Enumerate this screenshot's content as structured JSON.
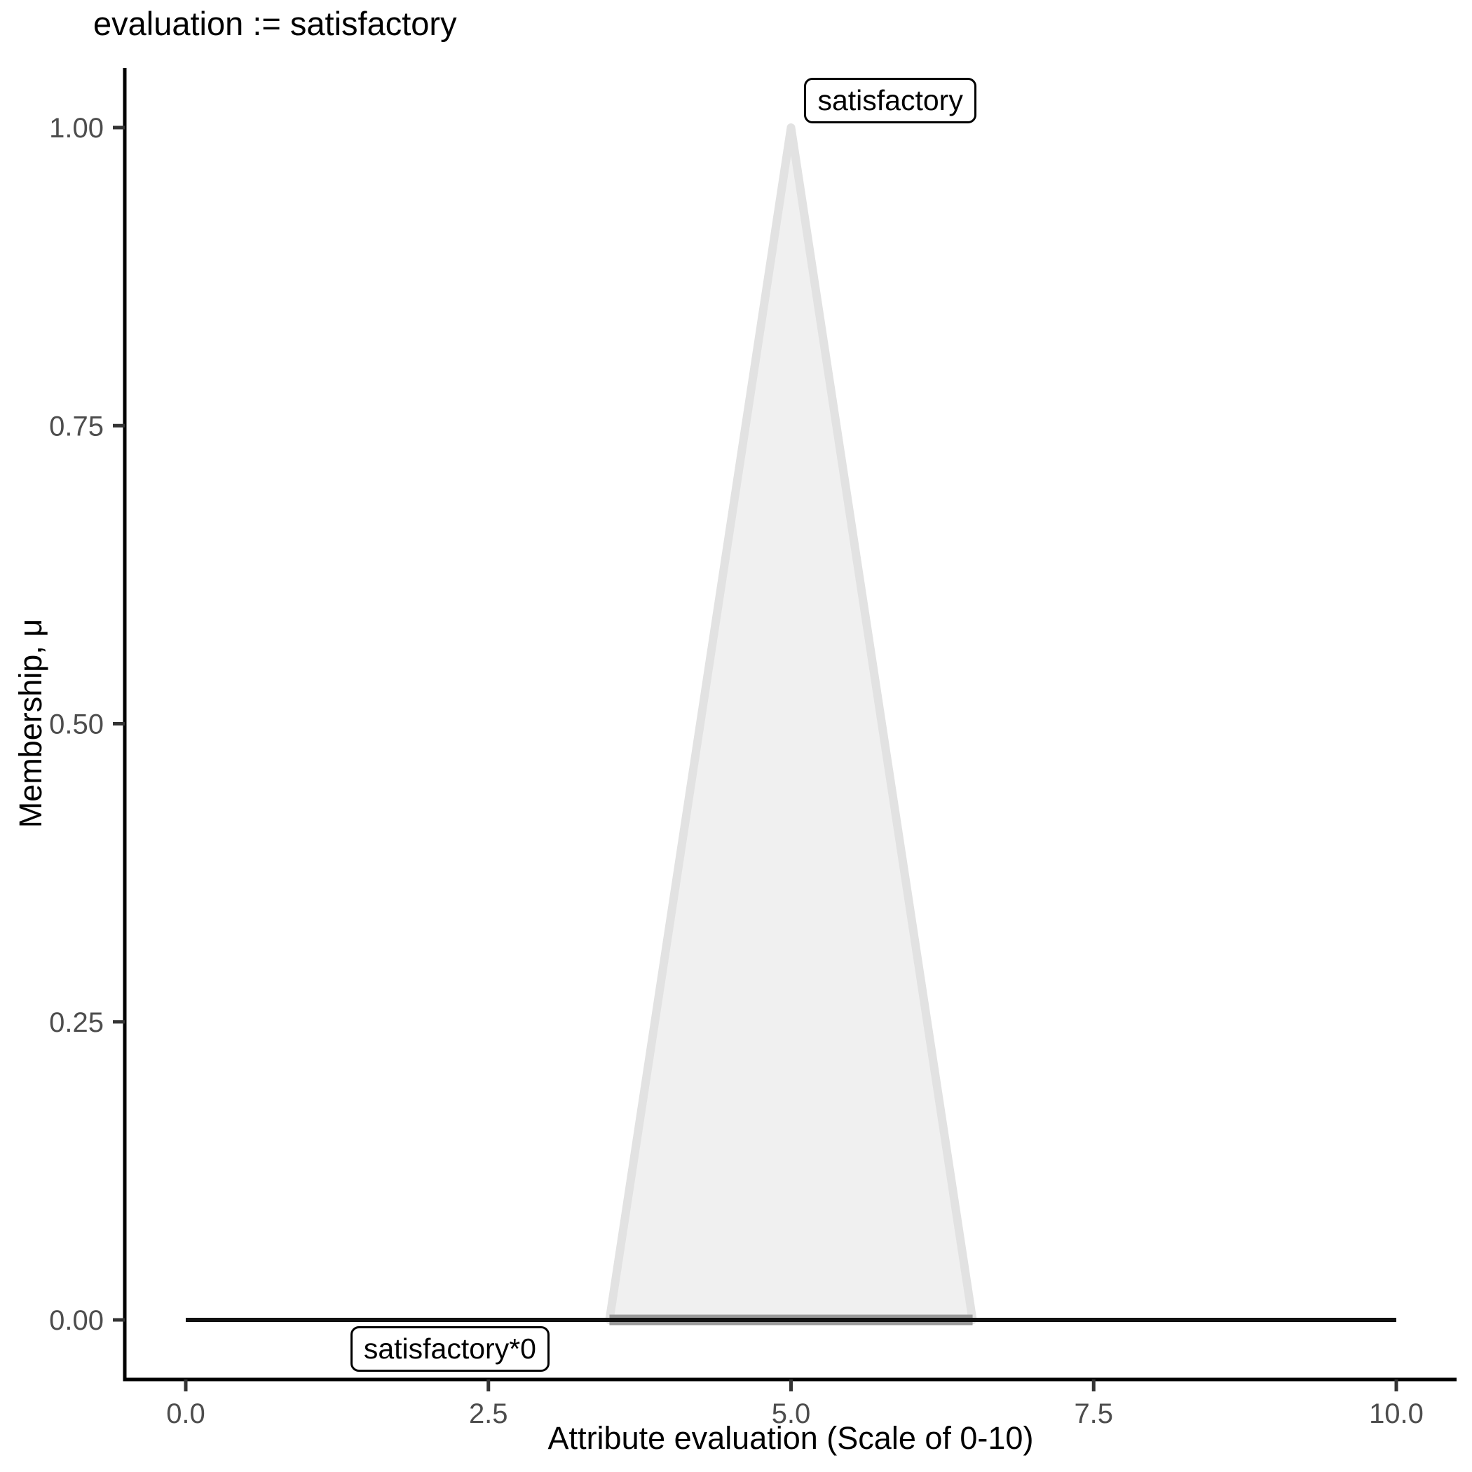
{
  "chart_data": {
    "type": "area",
    "title": "evaluation := satisfactory",
    "xlabel": "Attribute evaluation (Scale of 0-10)",
    "ylabel": "Membership, μ",
    "xlim": [
      0,
      10
    ],
    "ylim": [
      0,
      1
    ],
    "grid": false,
    "legend_position": "none",
    "x_ticks": [
      {
        "value": 0,
        "label": "0.0"
      },
      {
        "value": 2.5,
        "label": "2.5"
      },
      {
        "value": 5,
        "label": "5.0"
      },
      {
        "value": 7.5,
        "label": "7.5"
      },
      {
        "value": 10,
        "label": "10.0"
      }
    ],
    "y_ticks": [
      {
        "value": 0,
        "label": "0.00"
      },
      {
        "value": 0.25,
        "label": "0.25"
      },
      {
        "value": 0.5,
        "label": "0.50"
      },
      {
        "value": 0.75,
        "label": "0.75"
      },
      {
        "value": 1,
        "label": "1.00"
      }
    ],
    "series": [
      {
        "name": "satisfactory",
        "type": "filled-polygon",
        "points": [
          [
            3.5,
            0
          ],
          [
            5,
            1
          ],
          [
            6.5,
            0
          ]
        ],
        "fill": "#f0f0f0",
        "stroke": "#e2e2e2"
      },
      {
        "name": "satisfactory*0",
        "type": "line",
        "points": [
          [
            0,
            0
          ],
          [
            10,
            0
          ]
        ],
        "stroke": "#111111",
        "overlay_segment": {
          "from": 3.5,
          "to": 6.5,
          "y": 0,
          "stroke": "#9a9a9a"
        }
      }
    ],
    "annotations": [
      {
        "text": "satisfactory",
        "x": 5.11,
        "y": 1,
        "placement": "above"
      },
      {
        "text": "satisfactory*0",
        "x": 1.36,
        "y": 0,
        "placement": "below"
      }
    ]
  },
  "colors": {
    "axis_line": "#000000",
    "tick_mark": "#333333",
    "tick_label": "#4d4d4d",
    "background": "#ffffff"
  }
}
